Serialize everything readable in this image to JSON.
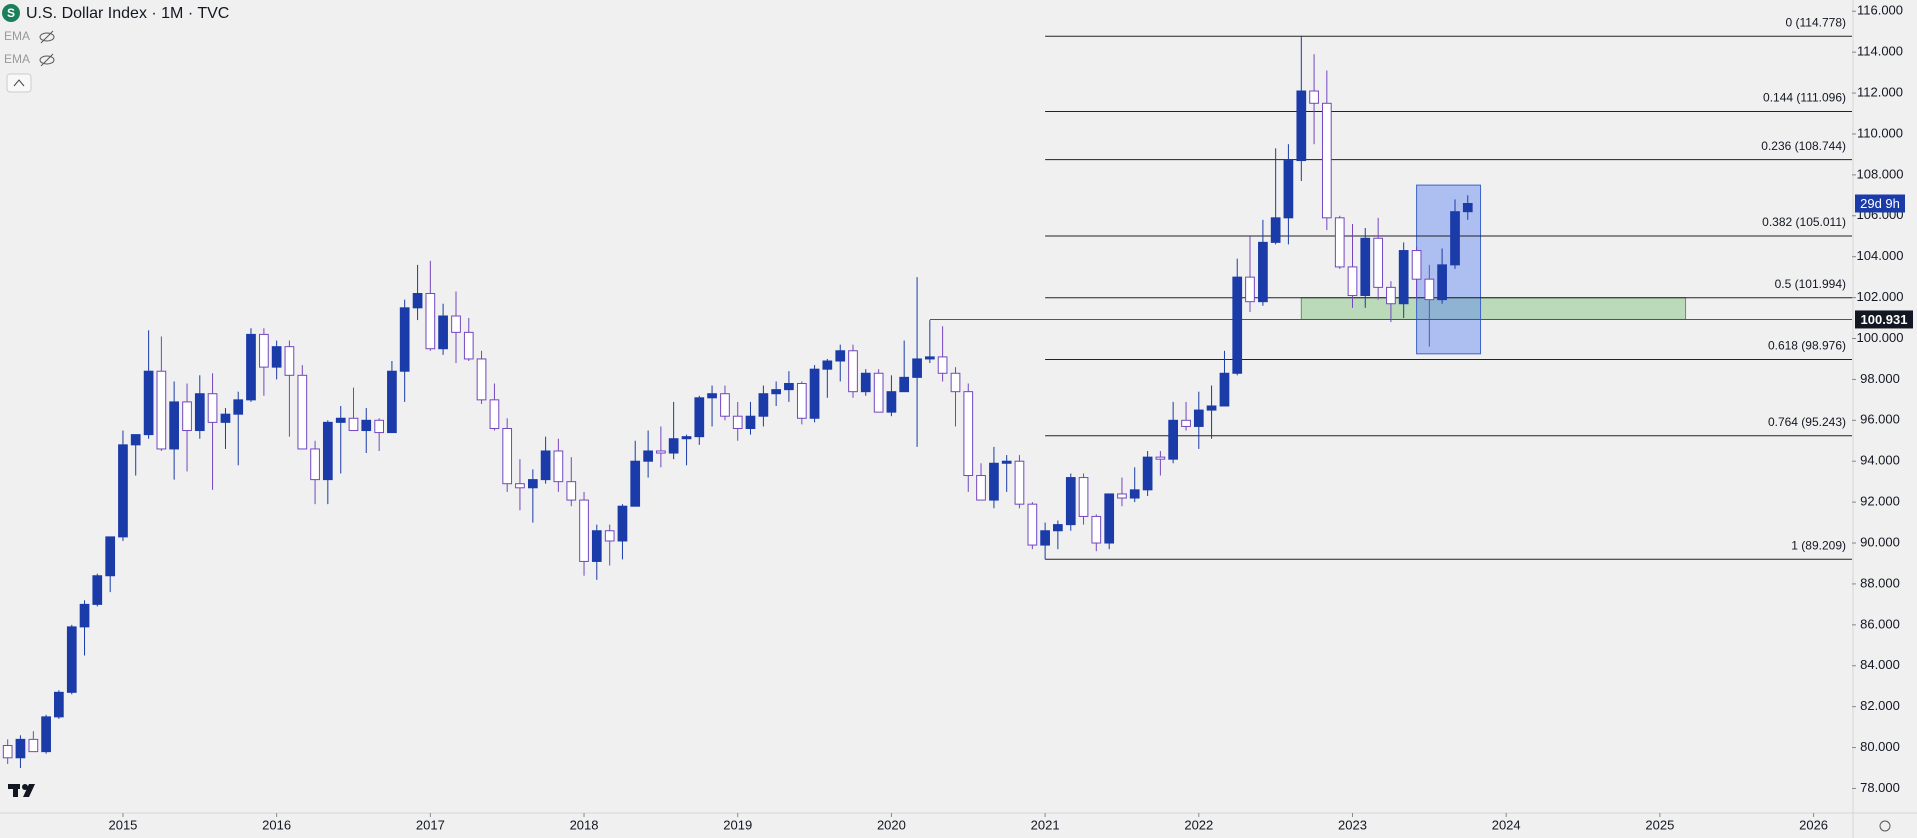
{
  "header": {
    "title": "U.S. Dollar Index · 1M · TVC",
    "indicators": [
      "EMA",
      "EMA"
    ]
  },
  "chart_data": {
    "type": "candlestick",
    "x": [
      2014.25,
      2014.333,
      2014.417,
      2014.5,
      2014.583,
      2014.667,
      2014.75,
      2014.833,
      2014.917,
      2015.0,
      2015.083,
      2015.167,
      2015.25,
      2015.333,
      2015.417,
      2015.5,
      2015.583,
      2015.667,
      2015.75,
      2015.833,
      2015.917,
      2016.0,
      2016.083,
      2016.167,
      2016.25,
      2016.333,
      2016.417,
      2016.5,
      2016.583,
      2016.667,
      2016.75,
      2016.833,
      2016.917,
      2017.0,
      2017.083,
      2017.167,
      2017.25,
      2017.333,
      2017.417,
      2017.5,
      2017.583,
      2017.667,
      2017.75,
      2017.833,
      2017.917,
      2018.0,
      2018.083,
      2018.167,
      2018.25,
      2018.333,
      2018.417,
      2018.5,
      2018.583,
      2018.667,
      2018.75,
      2018.833,
      2018.917,
      2019.0,
      2019.083,
      2019.167,
      2019.25,
      2019.333,
      2019.417,
      2019.5,
      2019.583,
      2019.667,
      2019.75,
      2019.833,
      2019.917,
      2020.0,
      2020.083,
      2020.167,
      2020.25,
      2020.333,
      2020.417,
      2020.5,
      2020.583,
      2020.667,
      2020.75,
      2020.833,
      2020.917,
      2021.0,
      2021.083,
      2021.167,
      2021.25,
      2021.333,
      2021.417,
      2021.5,
      2021.583,
      2021.667,
      2021.75,
      2021.833,
      2021.917,
      2022.0,
      2022.083,
      2022.167,
      2022.25,
      2022.333,
      2022.417,
      2022.5,
      2022.583,
      2022.667,
      2022.75,
      2022.833,
      2022.917,
      2023.0,
      2023.083,
      2023.167,
      2023.25,
      2023.333,
      2023.417,
      2023.5,
      2023.583,
      2023.667,
      2023.75
    ],
    "open": [
      80.1,
      79.5,
      80.4,
      79.8,
      81.5,
      82.7,
      85.9,
      87.0,
      88.4,
      90.3,
      94.8,
      95.3,
      98.4,
      94.6,
      96.9,
      95.5,
      97.3,
      95.9,
      96.3,
      97.0,
      100.2,
      98.6,
      99.6,
      98.2,
      94.6,
      93.1,
      95.9,
      96.1,
      95.5,
      96.0,
      95.4,
      98.4,
      101.5,
      102.2,
      99.5,
      101.1,
      100.3,
      99.0,
      97.0,
      95.6,
      92.9,
      92.7,
      93.1,
      94.5,
      93.0,
      92.1,
      89.1,
      90.6,
      90.1,
      91.8,
      94.0,
      94.5,
      94.4,
      95.1,
      95.2,
      97.1,
      97.3,
      96.2,
      95.6,
      96.2,
      97.3,
      97.5,
      97.8,
      96.1,
      98.5,
      98.9,
      99.4,
      97.4,
      98.3,
      96.4,
      97.4,
      98.1,
      99.0,
      99.1,
      98.3,
      97.4,
      93.3,
      92.1,
      93.9,
      94.0,
      91.9,
      89.9,
      90.6,
      90.9,
      93.2,
      91.3,
      90.0,
      92.4,
      92.2,
      92.6,
      94.2,
      94.1,
      96.0,
      95.7,
      96.5,
      96.7,
      98.3,
      103.0,
      101.8,
      104.7,
      105.9,
      108.7,
      112.1,
      111.5,
      105.9,
      103.5,
      102.1,
      104.9,
      102.5,
      101.7,
      104.3,
      102.9,
      101.9,
      103.6,
      106.2
    ],
    "high": [
      80.4,
      80.6,
      80.8,
      81.6,
      82.8,
      86.0,
      87.2,
      88.5,
      90.3,
      95.5,
      95.3,
      100.4,
      100.1,
      97.9,
      97.8,
      98.2,
      98.3,
      96.6,
      97.4,
      100.5,
      100.5,
      99.9,
      99.9,
      98.7,
      95.0,
      96.0,
      96.7,
      97.6,
      96.6,
      96.1,
      98.9,
      101.9,
      103.6,
      103.8,
      101.7,
      102.3,
      101.0,
      99.4,
      97.8,
      96.1,
      94.1,
      93.6,
      95.2,
      95.1,
      94.2,
      92.5,
      90.9,
      90.9,
      91.9,
      95.0,
      95.5,
      95.7,
      96.9,
      95.3,
      97.2,
      97.7,
      97.7,
      96.9,
      96.9,
      97.7,
      97.9,
      98.4,
      97.9,
      98.7,
      99.0,
      99.7,
      99.7,
      98.5,
      98.5,
      98.2,
      99.9,
      103.0,
      100.9,
      100.6,
      98.6,
      97.8,
      93.9,
      94.7,
      94.3,
      94.3,
      92.0,
      91.0,
      91.1,
      93.4,
      93.4,
      91.4,
      92.4,
      93.2,
      93.7,
      94.5,
      94.5,
      96.9,
      96.9,
      97.4,
      97.7,
      99.4,
      103.9,
      105.0,
      105.8,
      109.3,
      109.5,
      114.8,
      113.9,
      113.1,
      106.0,
      105.6,
      105.4,
      105.9,
      102.8,
      104.7,
      104.5,
      103.6,
      104.4,
      106.8,
      107.0
    ],
    "low": [
      79.2,
      79.0,
      79.8,
      79.7,
      81.4,
      82.6,
      84.5,
      86.9,
      87.6,
      90.1,
      93.3,
      95.1,
      94.5,
      93.1,
      93.5,
      95.1,
      92.6,
      94.6,
      93.8,
      96.9,
      97.2,
      98.0,
      95.2,
      94.6,
      91.9,
      91.9,
      93.4,
      95.5,
      94.4,
      94.5,
      95.4,
      96.9,
      100.9,
      99.4,
      99.2,
      98.8,
      98.9,
      96.8,
      95.5,
      92.5,
      91.6,
      91.0,
      92.9,
      92.5,
      91.8,
      88.4,
      88.2,
      88.9,
      89.2,
      91.8,
      93.2,
      93.7,
      94.1,
      93.8,
      94.8,
      95.7,
      96.0,
      95.0,
      95.3,
      95.7,
      96.7,
      96.9,
      95.8,
      95.9,
      97.1,
      97.9,
      97.1,
      97.2,
      96.4,
      96.2,
      97.4,
      94.7,
      98.8,
      97.9,
      95.7,
      92.5,
      92.1,
      91.7,
      92.5,
      91.7,
      89.7,
      89.2,
      89.7,
      90.6,
      90.9,
      89.6,
      89.7,
      91.8,
      92.0,
      92.3,
      93.3,
      93.9,
      95.5,
      94.6,
      95.1,
      96.7,
      98.2,
      101.3,
      101.6,
      104.6,
      104.6,
      107.7,
      109.5,
      105.3,
      103.4,
      101.5,
      101.5,
      101.9,
      100.8,
      101.0,
      101.9,
      99.6,
      101.7,
      103.4,
      105.8
    ],
    "close": [
      79.5,
      80.4,
      79.8,
      81.5,
      82.7,
      85.9,
      87.0,
      88.4,
      90.3,
      94.8,
      95.3,
      98.4,
      94.6,
      96.9,
      95.5,
      97.3,
      95.9,
      96.3,
      97.0,
      100.2,
      98.6,
      99.6,
      98.2,
      94.6,
      93.1,
      95.9,
      96.1,
      95.5,
      96.0,
      95.4,
      98.4,
      101.5,
      102.2,
      99.5,
      101.1,
      100.3,
      99.0,
      97.0,
      95.6,
      92.9,
      92.7,
      93.1,
      94.5,
      93.0,
      92.1,
      89.1,
      90.6,
      90.1,
      91.8,
      94.0,
      94.5,
      94.4,
      95.1,
      95.2,
      97.1,
      97.3,
      96.2,
      95.6,
      96.2,
      97.3,
      97.5,
      97.8,
      96.1,
      98.5,
      98.9,
      99.4,
      97.4,
      98.3,
      96.4,
      97.4,
      98.1,
      99.0,
      99.1,
      98.3,
      97.4,
      93.3,
      92.1,
      93.9,
      94.0,
      91.9,
      89.9,
      90.6,
      90.9,
      93.2,
      91.3,
      90.0,
      92.4,
      92.2,
      92.6,
      94.2,
      94.1,
      96.0,
      95.7,
      96.5,
      96.7,
      98.3,
      103.0,
      101.8,
      104.7,
      105.9,
      108.7,
      112.1,
      111.5,
      105.9,
      103.5,
      102.1,
      104.9,
      102.5,
      101.7,
      104.3,
      102.9,
      101.9,
      103.6,
      106.2,
      106.6
    ],
    "up_color": "#1a3ba8",
    "down_color": "#ffffff",
    "down_border": "#7346c0",
    "xlim": [
      2014.2,
      2026.25
    ],
    "xticks": [
      2015,
      2016,
      2017,
      2018,
      2019,
      2020,
      2021,
      2022,
      2023,
      2024,
      2025,
      2026
    ],
    "ylim": [
      76.8,
      116.55
    ],
    "yticks": [
      {
        "value": 78,
        "label": "78.000"
      },
      {
        "value": 80,
        "label": "80.000"
      },
      {
        "value": 82,
        "label": "82.000"
      },
      {
        "value": 84,
        "label": "84.000"
      },
      {
        "value": 86,
        "label": "86.000"
      },
      {
        "value": 88,
        "label": "88.000"
      },
      {
        "value": 90,
        "label": "90.000"
      },
      {
        "value": 92,
        "label": "92.000"
      },
      {
        "value": 94,
        "label": "94.000"
      },
      {
        "value": 96,
        "label": "96.000"
      },
      {
        "value": 98,
        "label": "98.000"
      },
      {
        "value": 100,
        "label": "100.000"
      },
      {
        "value": 102,
        "label": "102.000"
      },
      {
        "value": 104,
        "label": "104.000"
      },
      {
        "value": 106,
        "label": "106.000"
      },
      {
        "value": 108,
        "label": "108.000"
      },
      {
        "value": 110,
        "label": "110.000"
      },
      {
        "value": 112,
        "label": "112.000"
      },
      {
        "value": 114,
        "label": "114.000"
      },
      {
        "value": 116,
        "label": "116.000"
      }
    ],
    "grid": false,
    "fibonacci": {
      "from": 2021.0,
      "color": "#222222",
      "levels": [
        {
          "value": 114.778,
          "label": "0 (114.778)"
        },
        {
          "value": 111.096,
          "label": "0.144 (111.096)"
        },
        {
          "value": 108.744,
          "label": "0.236 (108.744)"
        },
        {
          "value": 105.011,
          "label": "0.382 (105.011)"
        },
        {
          "value": 101.994,
          "label": "0.5 (101.994)"
        },
        {
          "value": 98.976,
          "label": "0.618 (98.976)"
        },
        {
          "value": 95.243,
          "label": "0.764 (95.243)"
        },
        {
          "value": 89.209,
          "label": "1 (89.209)"
        }
      ]
    },
    "price_line": {
      "value": 100.931,
      "from": 2020.25
    },
    "zones": [
      {
        "x": [
          2022.667,
          2025.167
        ],
        "y": [
          100.931,
          101.994
        ],
        "fill": "rgba(120,190,120,0.45)",
        "stroke": "#5a9a5a"
      },
      {
        "x": [
          2023.417,
          2023.833
        ],
        "y": [
          99.25,
          107.5
        ],
        "fill": "rgba(90,130,240,0.45)",
        "stroke": "#3e64c8"
      }
    ],
    "countdown": {
      "value": 106.6,
      "label": "29d 9h"
    }
  }
}
